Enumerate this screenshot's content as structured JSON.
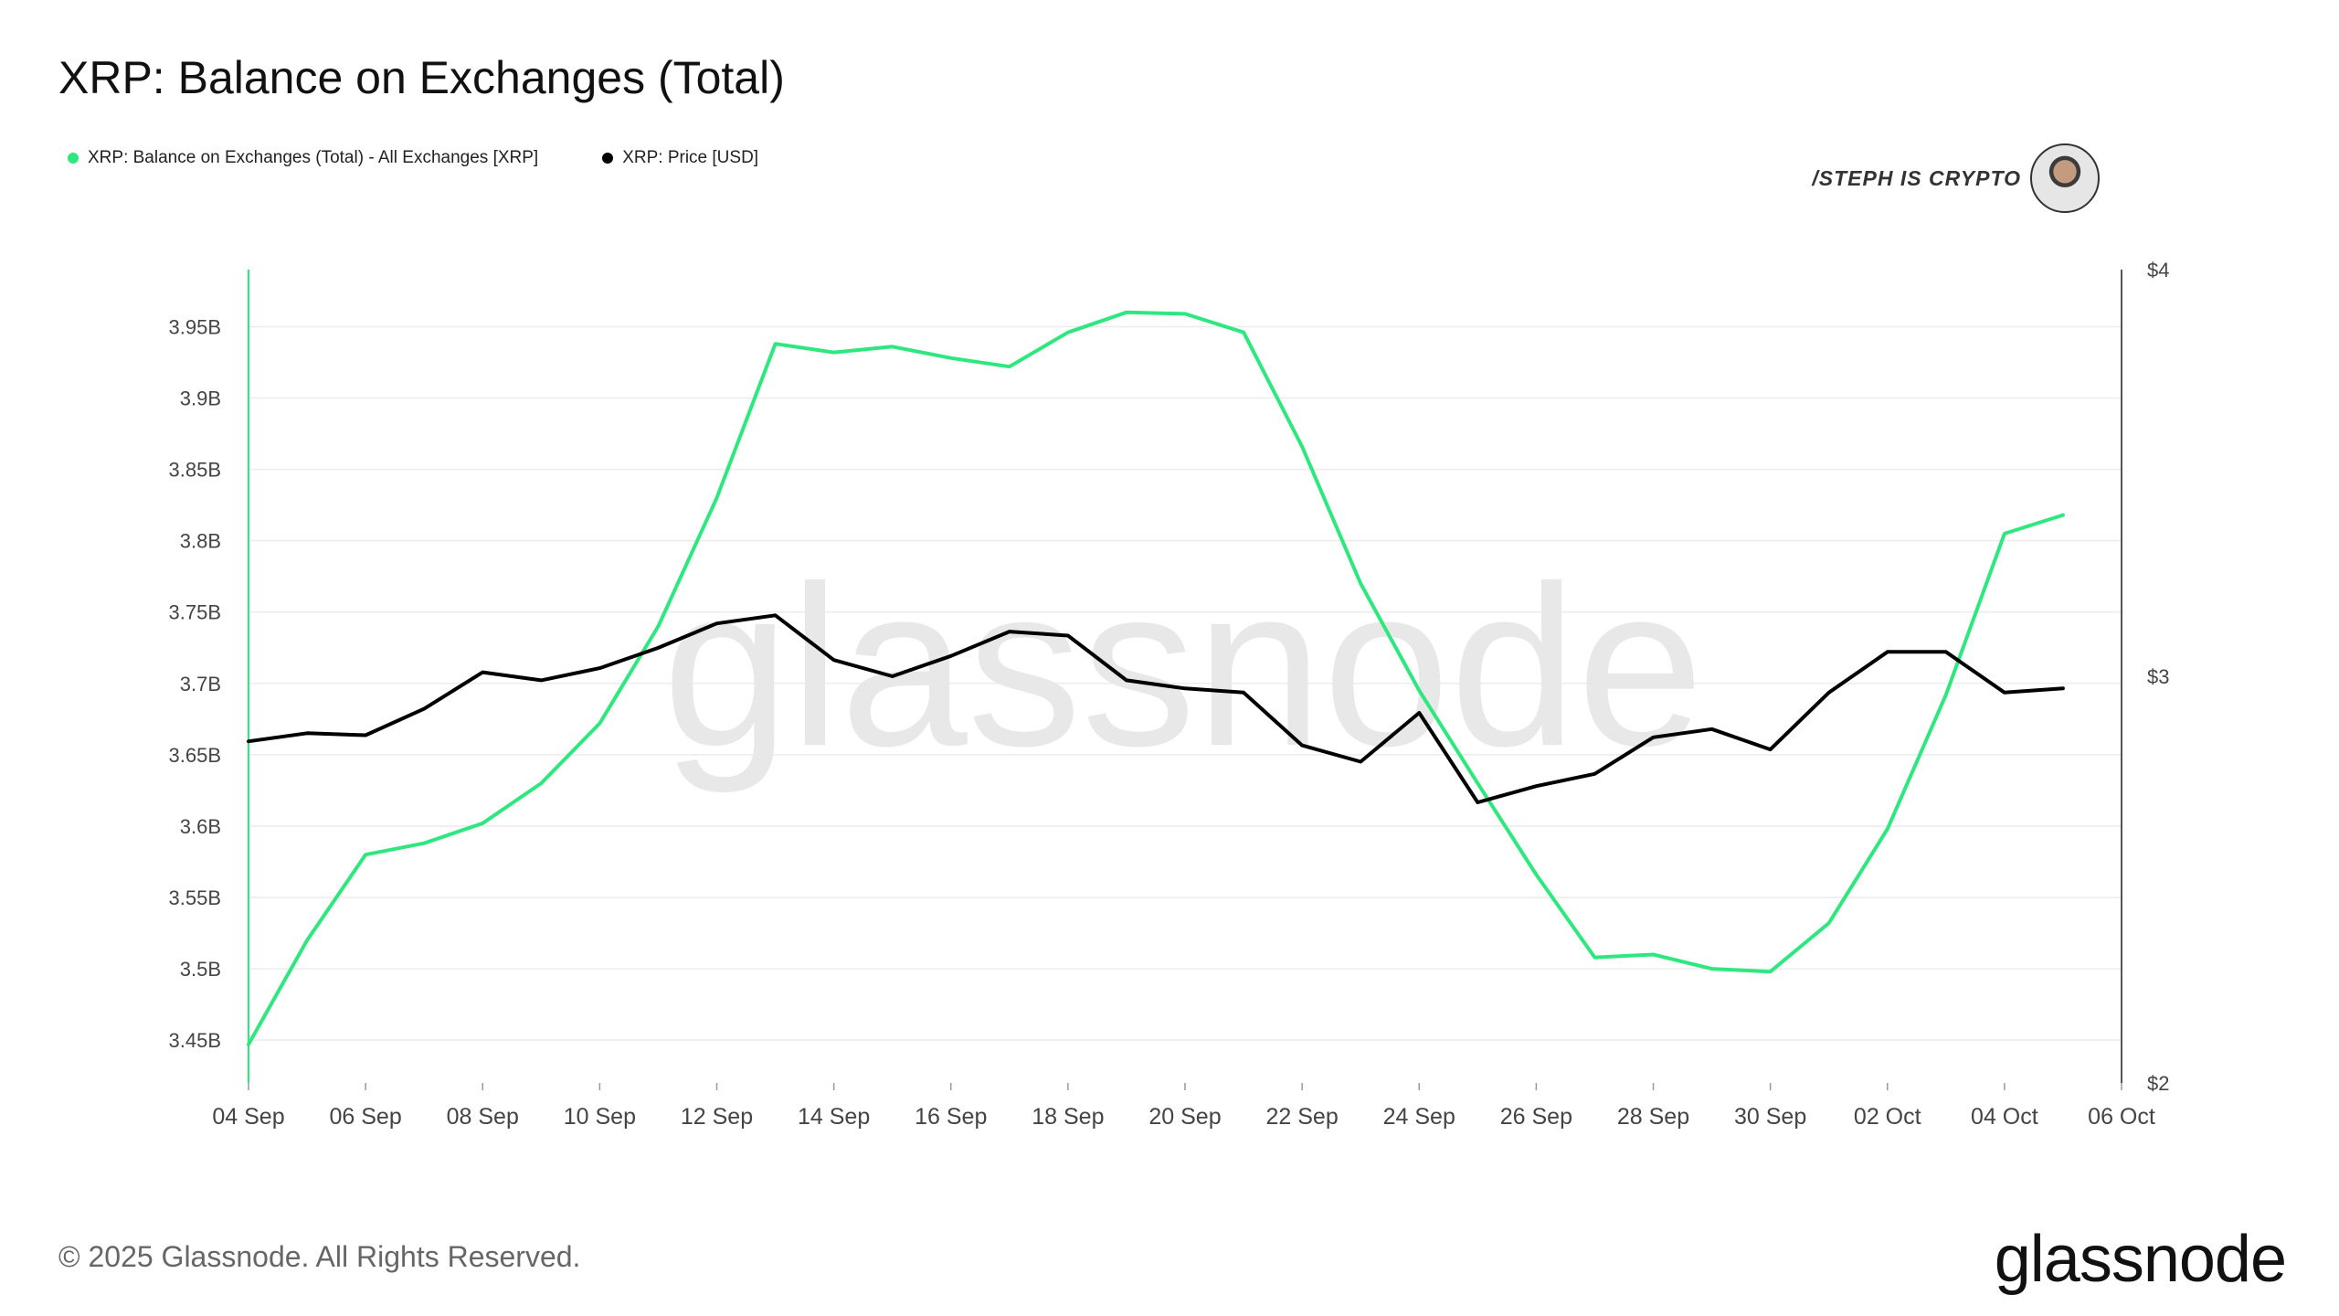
{
  "title": "XRP: Balance on Exchanges (Total)",
  "legend": [
    {
      "label": "XRP: Balance on Exchanges (Total) - All Exchanges [XRP]",
      "color": "#2ee87f"
    },
    {
      "label": "XRP: Price [USD]",
      "color": "#000000"
    }
  ],
  "badge": {
    "text": "/STEPH IS CRYPTO"
  },
  "watermark": "glassnode",
  "footer": {
    "copyright": "© 2025 Glassnode. All Rights Reserved.",
    "brand": "glassnode"
  },
  "chart_data": {
    "type": "line",
    "x_tick_labels": [
      "04 Sep",
      "06 Sep",
      "08 Sep",
      "10 Sep",
      "12 Sep",
      "14 Sep",
      "16 Sep",
      "18 Sep",
      "20 Sep",
      "22 Sep",
      "24 Sep",
      "26 Sep",
      "28 Sep",
      "30 Sep",
      "02 Oct",
      "04 Oct",
      "06 Oct"
    ],
    "y_left_tick_labels": [
      "3.45B",
      "3.5B",
      "3.55B",
      "3.6B",
      "3.65B",
      "3.7B",
      "3.75B",
      "3.8B",
      "3.85B",
      "3.9B",
      "3.95B"
    ],
    "y_left_ticks": [
      3.45,
      3.5,
      3.55,
      3.6,
      3.65,
      3.7,
      3.75,
      3.8,
      3.85,
      3.9,
      3.95
    ],
    "y_left_range": [
      3.42,
      3.99
    ],
    "y_right_tick_labels": [
      "$2",
      "$3",
      "$4"
    ],
    "y_right_ticks": [
      2,
      3,
      4
    ],
    "y_right_range": [
      2,
      4
    ],
    "x_range": [
      "04 Sep",
      "06 Oct"
    ],
    "grid": true,
    "legend_position": "top-left",
    "dates": [
      "04 Sep",
      "05 Sep",
      "06 Sep",
      "07 Sep",
      "08 Sep",
      "09 Sep",
      "10 Sep",
      "11 Sep",
      "12 Sep",
      "13 Sep",
      "14 Sep",
      "15 Sep",
      "16 Sep",
      "17 Sep",
      "18 Sep",
      "19 Sep",
      "20 Sep",
      "21 Sep",
      "22 Sep",
      "23 Sep",
      "24 Sep",
      "25 Sep",
      "26 Sep",
      "27 Sep",
      "28 Sep",
      "29 Sep",
      "30 Sep",
      "01 Oct",
      "02 Oct",
      "03 Oct",
      "04 Oct",
      "05 Oct"
    ],
    "series": [
      {
        "name": "XRP: Balance on Exchanges (Total) - All Exchanges [XRP]",
        "axis": "left",
        "color": "#2ee87f",
        "values": [
          3.447,
          3.52,
          3.58,
          3.588,
          3.602,
          3.63,
          3.672,
          3.74,
          3.83,
          3.938,
          3.932,
          3.936,
          3.928,
          3.922,
          3.946,
          3.96,
          3.959,
          3.946,
          3.866,
          3.77,
          3.695,
          3.63,
          3.566,
          3.508,
          3.51,
          3.5,
          3.498,
          3.532,
          3.598,
          3.692,
          3.805,
          3.818
        ]
      },
      {
        "name": "XRP: Price [USD]",
        "axis": "right",
        "color": "#000000",
        "values": [
          2.84,
          2.86,
          2.855,
          2.92,
          3.01,
          2.99,
          3.02,
          3.07,
          3.13,
          3.15,
          3.04,
          3.0,
          3.05,
          3.11,
          3.1,
          2.99,
          2.97,
          2.96,
          2.83,
          2.79,
          2.91,
          2.69,
          2.73,
          2.76,
          2.85,
          2.87,
          2.82,
          2.96,
          3.06,
          3.06,
          2.96,
          2.97
        ]
      }
    ]
  }
}
